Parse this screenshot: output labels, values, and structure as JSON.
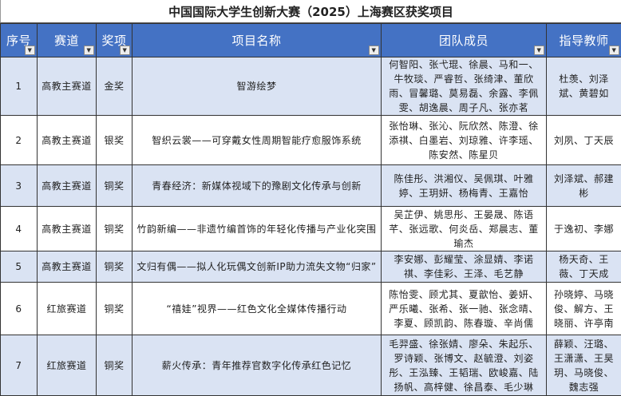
{
  "title": "中国国际大学生创新大赛（2025）上海赛区获奖项目",
  "headers": [
    "序号",
    "赛道",
    "奖项",
    "项目名称",
    "团队成员",
    "指导教师"
  ],
  "rows": [
    {
      "no": "1",
      "track": "高教主赛道",
      "award": "金奖",
      "project": "智游绘梦",
      "members": "何智阳、张弋琨、徐晨、马和一、牛牧琰、严睿哲、张绮津、董欣雨、冒馨璐、莫易磊、余露、李佩雯、胡逸晨、周子凡、张亦茗",
      "advisors": "杜羡、刘泽斌、黄碧如"
    },
    {
      "no": "2",
      "track": "高教主赛道",
      "award": "银奖",
      "project": "智织云裳——可穿戴女性周期智能疗愈服饰系统",
      "members": "张怡琳、张沁、阮欣然、陈澄、徐添祺、白墨岩、刘琼雅、许李瑶、陈安然、陈星贝",
      "advisors": "刘夙、丁天辰"
    },
    {
      "no": "3",
      "track": "高教主赛道",
      "award": "铜奖",
      "project": "青春经济：新媒体视域下的豫剧文化传承与创新",
      "members": "陈佳彤、洪湘仪、吴佩琪、叶雅婷、王玥妍、杨梅青、王嘉怡",
      "advisors": "刘泽斌、郝建彬"
    },
    {
      "no": "4",
      "track": "高教主赛道",
      "award": "铜奖",
      "project": "竹韵新编——非遗竹编首饰的年轻化传播与产业化突围",
      "members": "吴芷伊、姚思彤、王晏晟、陈语芊、张远歌、何炎岳、郑晨志、董瑜杰",
      "advisors": "于逸初、李娜"
    },
    {
      "no": "5",
      "track": "高教主赛道",
      "award": "铜奖",
      "project": "文归有偶——拟人化玩偶文创新IP助力流失文物“归家”",
      "members": "李安娜、彭耀莹、涂显婧、李诺祺、李佳彩、王泽、毛艺静",
      "advisors": "杨天奇、王薇、丁天成"
    },
    {
      "no": "6",
      "track": "红旅赛道",
      "award": "铜奖",
      "project": "“禧娃”视界——红色文化全媒体传播行动",
      "members": "陈怡雯、顾尤其、夏歆怡、姜妍、严乐曦、张希、张一驰、张念晴、李夏、顾凯韵、陈春璇、辛尚儒",
      "advisors": "孙晓婷、马晓俊、解方、王晓丽、许亭南"
    },
    {
      "no": "7",
      "track": "红旅赛道",
      "award": "铜奖",
      "project": "薪火传承：青年推荐官数字化传承红色记忆",
      "members": "毛羿盛、徐张婧、廖朵、朱起乐、罗诗颖、张博文、赵毓澄、刘姿彤、王泓臻、王韬瑞、欧峻嘉、陆扬帆、高梓健、徐昌泰、毛少琳",
      "advisors": "薛颖、汪璐、王潇潇、王昊玥、马晓俊、魏志强"
    }
  ],
  "colors": {
    "header_bg": "#4472c4",
    "odd_row_bg": "#dae3f3"
  }
}
